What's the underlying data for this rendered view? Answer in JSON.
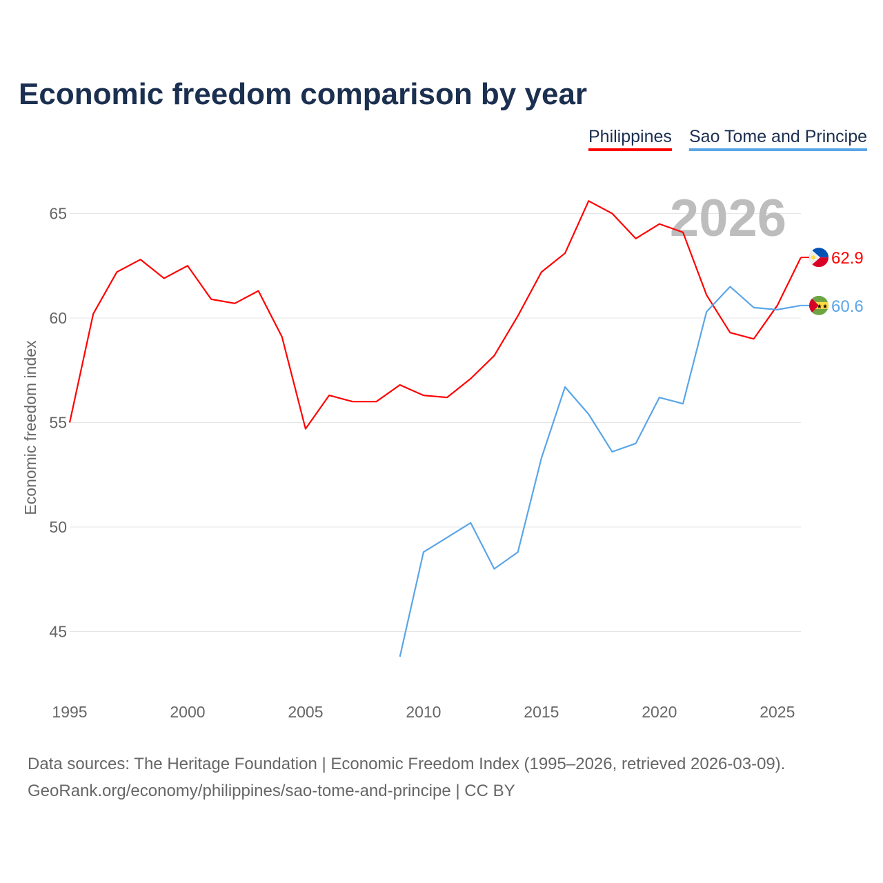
{
  "chart_data": {
    "type": "line",
    "title": "Economic freedom comparison by year",
    "xlabel": "",
    "ylabel": "Economic freedom index",
    "xlim": [
      1995,
      2026
    ],
    "ylim": [
      42,
      67.4
    ],
    "xticks": [
      1995,
      2000,
      2005,
      2010,
      2015,
      2020,
      2025
    ],
    "yticks": [
      45,
      50,
      55,
      60,
      65
    ],
    "grid": true,
    "legend_position": "top-right",
    "year_watermark": "2026",
    "series": [
      {
        "name": "Philippines",
        "color": "#ff0000",
        "end_label": "62.9",
        "x": [
          1995,
          1996,
          1997,
          1998,
          1999,
          2000,
          2001,
          2002,
          2003,
          2004,
          2005,
          2006,
          2007,
          2008,
          2009,
          2010,
          2011,
          2012,
          2013,
          2014,
          2015,
          2016,
          2017,
          2018,
          2019,
          2020,
          2021,
          2022,
          2023,
          2024,
          2025,
          2026
        ],
        "values": [
          55.0,
          60.2,
          62.2,
          62.8,
          61.9,
          62.5,
          60.9,
          60.7,
          61.3,
          59.1,
          54.7,
          56.3,
          56.0,
          56.0,
          56.8,
          56.3,
          56.2,
          57.1,
          58.2,
          60.1,
          62.2,
          63.1,
          65.6,
          65.0,
          63.8,
          64.5,
          64.1,
          61.1,
          59.3,
          59.0,
          60.6,
          62.9
        ]
      },
      {
        "name": "Sao Tome and Principe",
        "color": "#5aa5e8",
        "end_label": "60.6",
        "x": [
          2009,
          2010,
          2011,
          2012,
          2013,
          2014,
          2015,
          2016,
          2017,
          2018,
          2019,
          2020,
          2021,
          2022,
          2023,
          2024,
          2025,
          2026
        ],
        "values": [
          43.8,
          48.8,
          49.5,
          50.2,
          48.0,
          48.8,
          53.3,
          56.7,
          55.4,
          53.6,
          54.0,
          56.2,
          55.9,
          60.3,
          61.5,
          60.5,
          60.4,
          60.6
        ]
      }
    ]
  },
  "footer": {
    "line1": "Data sources: The Heritage Foundation | Economic Freedom Index (1995–2026, retrieved 2026-03-09).",
    "line2": "GeoRank.org/economy/philippines/sao-tome-and-principe | CC BY"
  }
}
